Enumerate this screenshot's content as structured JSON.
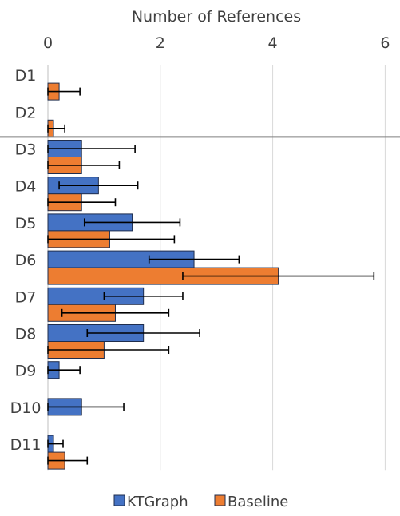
{
  "chart_data": {
    "type": "bar",
    "orientation": "horizontal",
    "xlabel": "Number of References",
    "xlim": [
      0,
      6
    ],
    "xticks": [
      0,
      2,
      4,
      6
    ],
    "grid": true,
    "legend_position": "bottom",
    "categories": [
      "D1",
      "D2",
      "D3",
      "D4",
      "D5",
      "D6",
      "D7",
      "D8",
      "D9",
      "D10",
      "D11"
    ],
    "separator_after": "D2",
    "series": [
      {
        "name": "KTGraph",
        "color": "#4472C4",
        "values": [
          0,
          0,
          0.6,
          0.9,
          1.5,
          2.6,
          1.7,
          1.7,
          0.2,
          0.6,
          0.1
        ],
        "errors": [
          0,
          0,
          0.95,
          0.7,
          0.85,
          0.8,
          0.7,
          1.0,
          0.37,
          0.75,
          0.17
        ]
      },
      {
        "name": "Baseline",
        "color": "#ED7D31",
        "values": [
          0.2,
          0.1,
          0.6,
          0.6,
          1.1,
          4.1,
          1.2,
          1.0,
          0,
          0,
          0.3
        ],
        "errors": [
          0.37,
          0.2,
          0.67,
          0.6,
          1.15,
          1.7,
          0.95,
          1.15,
          0,
          0,
          0.4
        ]
      }
    ]
  }
}
